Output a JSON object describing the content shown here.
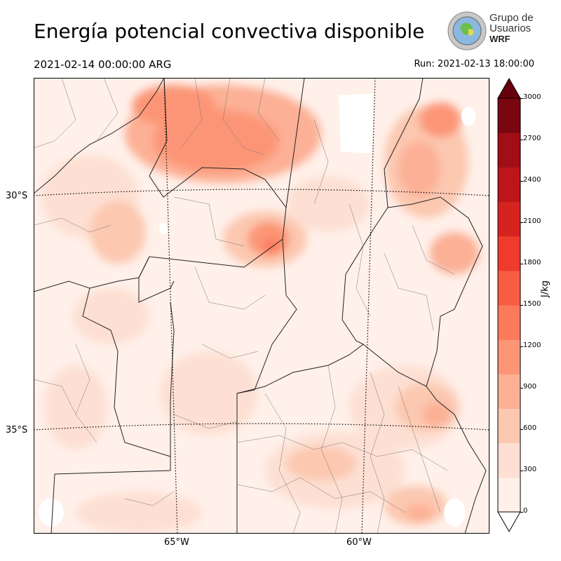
{
  "header": {
    "title": "Energía potencial convectiva disponible",
    "valid_time": "2021-02-14 00:00:00 ARG",
    "run_time": "Run: 2021-02-13 18:00:00"
  },
  "logo": {
    "line1": "Grupo de",
    "line2": "Usuarios",
    "line3": "WRF"
  },
  "map": {
    "lat_labels": [
      "30°S",
      "35°S"
    ],
    "lon_labels": [
      "65°W",
      "60°W"
    ]
  },
  "colorbar": {
    "unit": "J/kg",
    "ticks": [
      "0",
      "300",
      "600",
      "900",
      "1200",
      "1500",
      "1800",
      "2100",
      "2400",
      "2700",
      "3000"
    ],
    "levels": [
      0,
      150,
      300,
      450,
      600,
      750,
      900,
      1050,
      1200,
      1350,
      1500,
      1650,
      1800,
      1950,
      2100,
      2250,
      2400,
      2550,
      2700,
      2850,
      3000
    ],
    "colors": [
      "#fff0ea",
      "#fde0d3",
      "#fcc8b0",
      "#fcb095",
      "#fc9576",
      "#fb7a5a",
      "#f75d43",
      "#ee3b2c",
      "#d62320",
      "#bd151a",
      "#a10e16",
      "#7a0610"
    ]
  }
}
